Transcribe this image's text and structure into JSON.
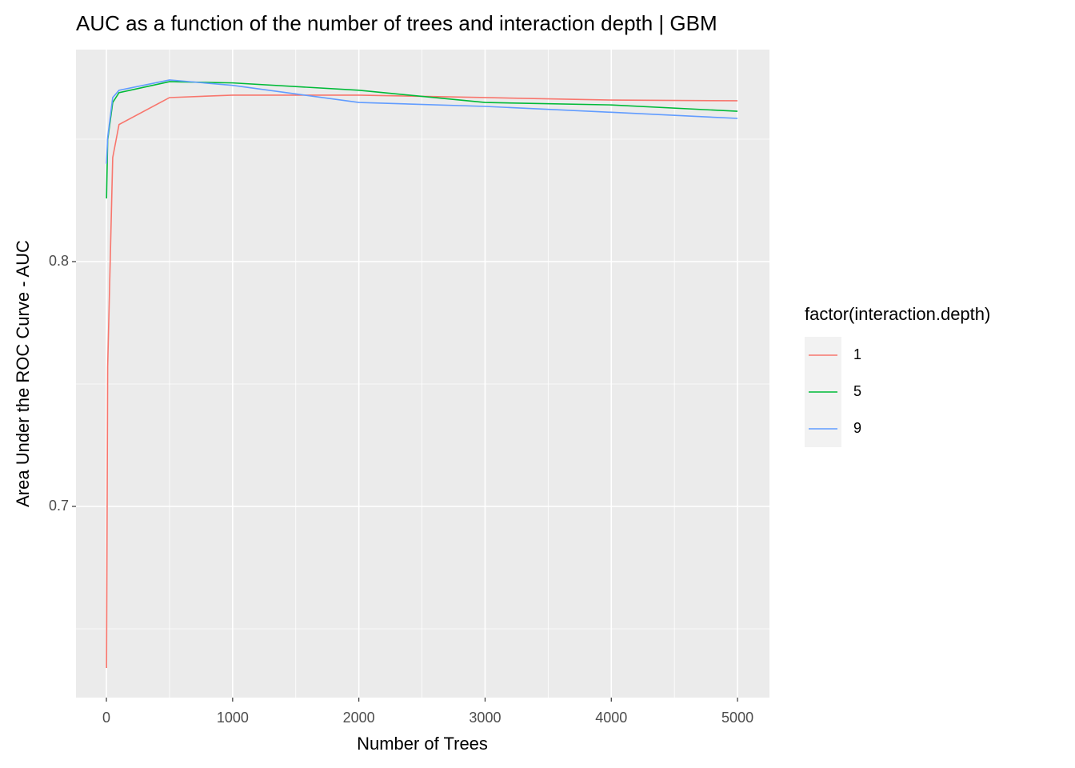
{
  "chart_data": {
    "type": "line",
    "title": "AUC as a function of the number of trees and interaction depth | GBM",
    "x_label": "Number of Trees",
    "y_label": "Area Under the ROC Curve - AUC",
    "legend_title": "factor(interaction.depth)",
    "legend_position": "right",
    "grid": true,
    "x": [
      1,
      10,
      50,
      100,
      500,
      1000,
      2000,
      3000,
      4000,
      5000
    ],
    "series": [
      {
        "name": "1",
        "color": "#F8766D",
        "values": [
          0.634,
          0.757,
          0.8425,
          0.856,
          0.867,
          0.868,
          0.868,
          0.867,
          0.866,
          0.8657
        ]
      },
      {
        "name": "5",
        "color": "#00BA38",
        "values": [
          0.8258,
          0.8497,
          0.865,
          0.869,
          0.8735,
          0.873,
          0.87,
          0.865,
          0.864,
          0.8614
        ]
      },
      {
        "name": "9",
        "color": "#619CFF",
        "values": [
          0.84,
          0.8507,
          0.867,
          0.87,
          0.8742,
          0.872,
          0.865,
          0.8634,
          0.861,
          0.8585
        ]
      }
    ],
    "xlim": [
      -241,
      5253
    ],
    "ylim": [
      0.6219,
      0.8866
    ],
    "xticks": [
      0,
      1000,
      2000,
      3000,
      4000,
      5000
    ],
    "yticks": [
      0.7,
      0.8
    ],
    "x_minor_ticks": [
      500,
      1500,
      2500,
      3500,
      4500
    ],
    "y_minor_ticks": [
      0.65,
      0.75,
      0.85
    ]
  }
}
